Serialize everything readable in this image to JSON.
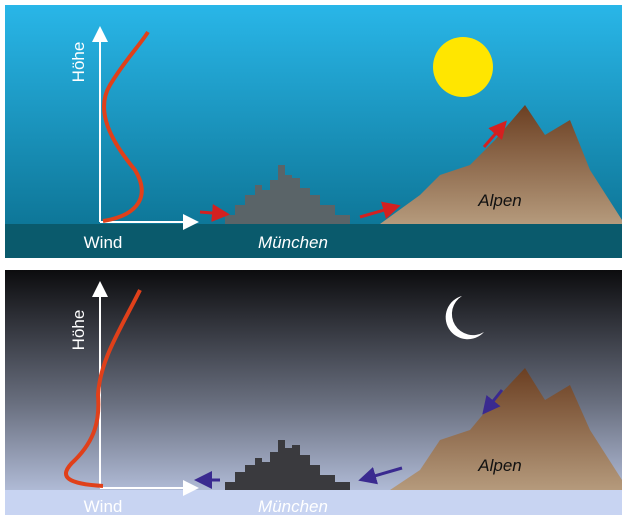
{
  "panels": [
    {
      "axis_y": "Höhe",
      "axis_x": "Wind",
      "city": "München",
      "mountain": "Alpen"
    },
    {
      "axis_y": "Höhe",
      "axis_x": "Wind",
      "city": "München",
      "mountain": "Alpen"
    }
  ]
}
